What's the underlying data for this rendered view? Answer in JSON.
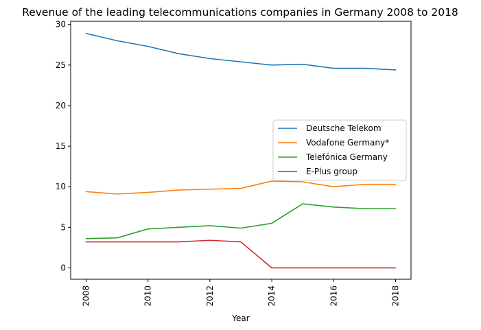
{
  "chart_data": {
    "type": "line",
    "title": "Revenue of the leading telecommunications companies in Germany 2008 to 2018",
    "xlabel": "Year",
    "ylabel": "",
    "x": [
      2008,
      2009,
      2010,
      2011,
      2012,
      2013,
      2014,
      2015,
      2016,
      2017,
      2018
    ],
    "xlim": [
      2007.5,
      2018.5
    ],
    "ylim": [
      -1.4,
      30.4
    ],
    "xticks": [
      2008,
      2010,
      2012,
      2014,
      2016,
      2018
    ],
    "yticks": [
      0,
      5,
      10,
      15,
      20,
      25,
      30
    ],
    "grid": false,
    "legend_position": "center-right",
    "series": [
      {
        "name": "Deutsche Telekom",
        "color": "#1f77b4",
        "values": [
          28.9,
          28.0,
          27.3,
          26.4,
          25.8,
          25.4,
          25.0,
          25.1,
          24.6,
          24.6,
          24.4
        ]
      },
      {
        "name": "Vodafone Germany*",
        "color": "#ff7f0e",
        "values": [
          9.4,
          9.1,
          9.3,
          9.6,
          9.7,
          9.8,
          10.7,
          10.6,
          10.0,
          10.3,
          10.3
        ]
      },
      {
        "name": "Telefónica Germany",
        "color": "#2ca02c",
        "values": [
          3.6,
          3.7,
          4.8,
          5.0,
          5.2,
          4.9,
          5.5,
          7.9,
          7.5,
          7.3,
          7.3
        ]
      },
      {
        "name": "E-Plus group",
        "color": "#d62728",
        "values": [
          3.2,
          3.2,
          3.2,
          3.2,
          3.4,
          3.2,
          0.0,
          0.0,
          0.0,
          0.0,
          0.0
        ]
      }
    ]
  }
}
